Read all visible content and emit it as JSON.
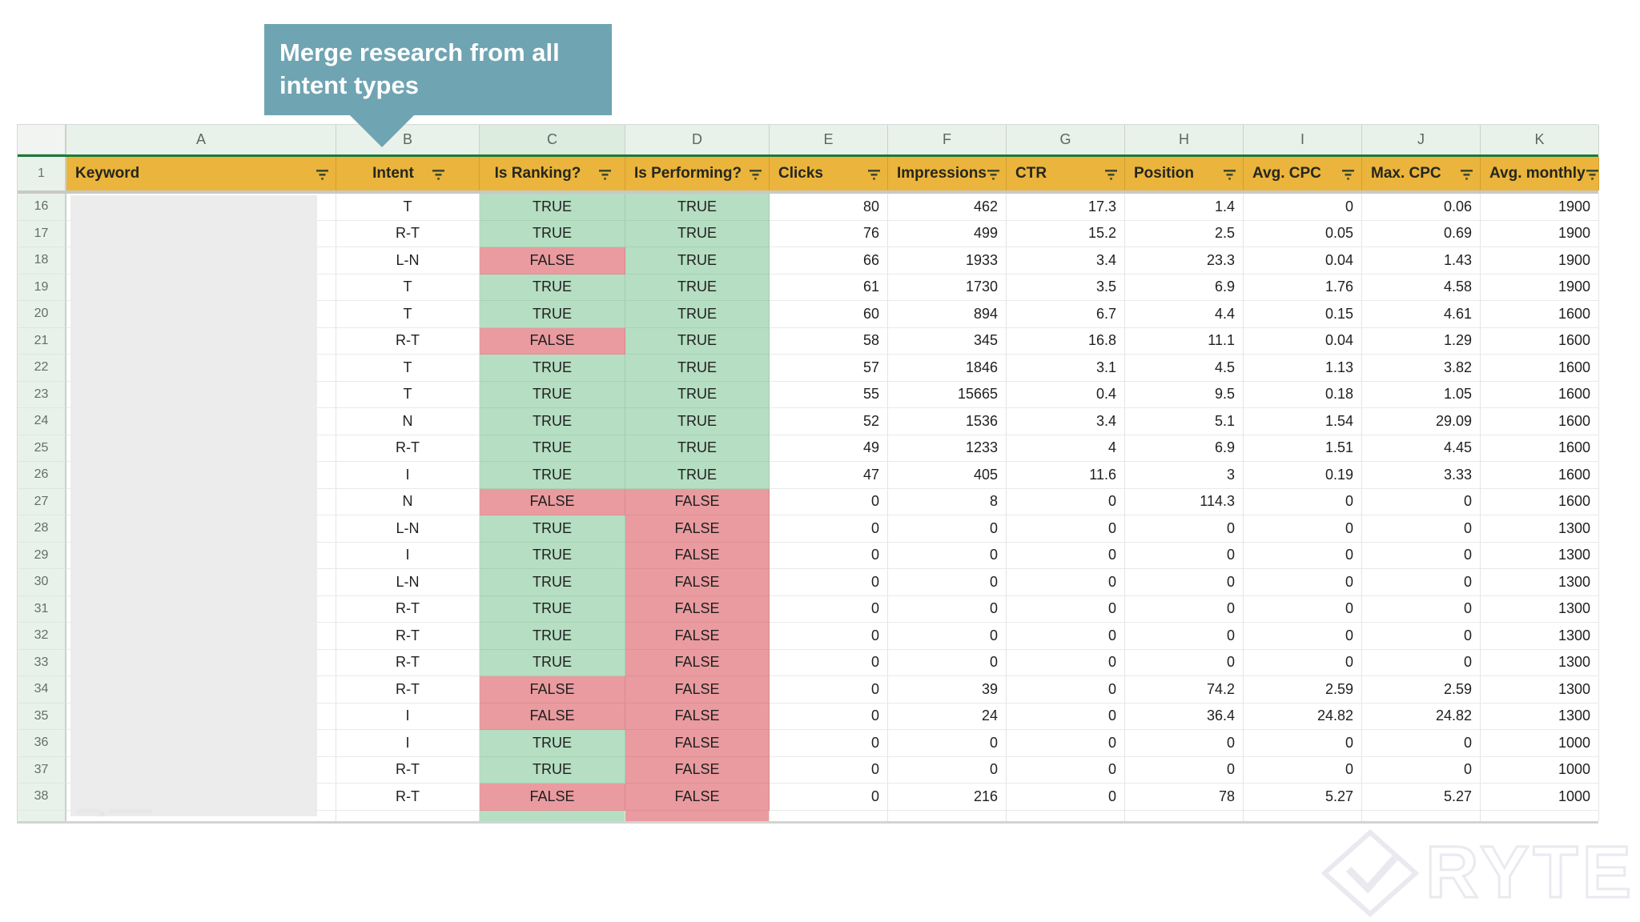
{
  "callout": {
    "text": "Merge research from all intent types"
  },
  "watermark": {
    "brand": "RYTE"
  },
  "sheet": {
    "column_letters": [
      "A",
      "B",
      "C",
      "D",
      "E",
      "F",
      "G",
      "H",
      "I",
      "J",
      "K"
    ],
    "highlighted_letter": "C",
    "first_row_number": "1",
    "headers": [
      "Keyword",
      "Intent",
      "Is Ranking?",
      "Is Performing?",
      "Clicks",
      "Impressions",
      "CTR",
      "Position",
      "Avg. CPC",
      "Max. CPC",
      "Avg. monthly"
    ],
    "rows": [
      {
        "n": "16",
        "intent": "T",
        "is_ranking": "TRUE",
        "is_performing": "TRUE",
        "clicks": "80",
        "impressions": "462",
        "ctr": "17.3",
        "position": "1.4",
        "avg_cpc": "0",
        "max_cpc": "0.06",
        "avg_monthly": "1900"
      },
      {
        "n": "17",
        "intent": "R-T",
        "is_ranking": "TRUE",
        "is_performing": "TRUE",
        "clicks": "76",
        "impressions": "499",
        "ctr": "15.2",
        "position": "2.5",
        "avg_cpc": "0.05",
        "max_cpc": "0.69",
        "avg_monthly": "1900"
      },
      {
        "n": "18",
        "intent": "L-N",
        "is_ranking": "FALSE",
        "is_performing": "TRUE",
        "clicks": "66",
        "impressions": "1933",
        "ctr": "3.4",
        "position": "23.3",
        "avg_cpc": "0.04",
        "max_cpc": "1.43",
        "avg_monthly": "1900"
      },
      {
        "n": "19",
        "intent": "T",
        "is_ranking": "TRUE",
        "is_performing": "TRUE",
        "clicks": "61",
        "impressions": "1730",
        "ctr": "3.5",
        "position": "6.9",
        "avg_cpc": "1.76",
        "max_cpc": "4.58",
        "avg_monthly": "1900"
      },
      {
        "n": "20",
        "intent": "T",
        "is_ranking": "TRUE",
        "is_performing": "TRUE",
        "clicks": "60",
        "impressions": "894",
        "ctr": "6.7",
        "position": "4.4",
        "avg_cpc": "0.15",
        "max_cpc": "4.61",
        "avg_monthly": "1600"
      },
      {
        "n": "21",
        "intent": "R-T",
        "is_ranking": "FALSE",
        "is_performing": "TRUE",
        "clicks": "58",
        "impressions": "345",
        "ctr": "16.8",
        "position": "11.1",
        "avg_cpc": "0.04",
        "max_cpc": "1.29",
        "avg_monthly": "1600"
      },
      {
        "n": "22",
        "intent": "T",
        "is_ranking": "TRUE",
        "is_performing": "TRUE",
        "clicks": "57",
        "impressions": "1846",
        "ctr": "3.1",
        "position": "4.5",
        "avg_cpc": "1.13",
        "max_cpc": "3.82",
        "avg_monthly": "1600"
      },
      {
        "n": "23",
        "intent": "T",
        "is_ranking": "TRUE",
        "is_performing": "TRUE",
        "clicks": "55",
        "impressions": "15665",
        "ctr": "0.4",
        "position": "9.5",
        "avg_cpc": "0.18",
        "max_cpc": "1.05",
        "avg_monthly": "1600"
      },
      {
        "n": "24",
        "intent": "N",
        "is_ranking": "TRUE",
        "is_performing": "TRUE",
        "clicks": "52",
        "impressions": "1536",
        "ctr": "3.4",
        "position": "5.1",
        "avg_cpc": "1.54",
        "max_cpc": "29.09",
        "avg_monthly": "1600"
      },
      {
        "n": "25",
        "intent": "R-T",
        "is_ranking": "TRUE",
        "is_performing": "TRUE",
        "clicks": "49",
        "impressions": "1233",
        "ctr": "4",
        "position": "6.9",
        "avg_cpc": "1.51",
        "max_cpc": "4.45",
        "avg_monthly": "1600"
      },
      {
        "n": "26",
        "intent": "I",
        "is_ranking": "TRUE",
        "is_performing": "TRUE",
        "clicks": "47",
        "impressions": "405",
        "ctr": "11.6",
        "position": "3",
        "avg_cpc": "0.19",
        "max_cpc": "3.33",
        "avg_monthly": "1600"
      },
      {
        "n": "27",
        "intent": "N",
        "is_ranking": "FALSE",
        "is_performing": "FALSE",
        "clicks": "0",
        "impressions": "8",
        "ctr": "0",
        "position": "114.3",
        "avg_cpc": "0",
        "max_cpc": "0",
        "avg_monthly": "1600"
      },
      {
        "n": "28",
        "intent": "L-N",
        "is_ranking": "TRUE",
        "is_performing": "FALSE",
        "clicks": "0",
        "impressions": "0",
        "ctr": "0",
        "position": "0",
        "avg_cpc": "0",
        "max_cpc": "0",
        "avg_monthly": "1300"
      },
      {
        "n": "29",
        "intent": "I",
        "is_ranking": "TRUE",
        "is_performing": "FALSE",
        "clicks": "0",
        "impressions": "0",
        "ctr": "0",
        "position": "0",
        "avg_cpc": "0",
        "max_cpc": "0",
        "avg_monthly": "1300"
      },
      {
        "n": "30",
        "intent": "L-N",
        "is_ranking": "TRUE",
        "is_performing": "FALSE",
        "clicks": "0",
        "impressions": "0",
        "ctr": "0",
        "position": "0",
        "avg_cpc": "0",
        "max_cpc": "0",
        "avg_monthly": "1300"
      },
      {
        "n": "31",
        "intent": "R-T",
        "is_ranking": "TRUE",
        "is_performing": "FALSE",
        "clicks": "0",
        "impressions": "0",
        "ctr": "0",
        "position": "0",
        "avg_cpc": "0",
        "max_cpc": "0",
        "avg_monthly": "1300"
      },
      {
        "n": "32",
        "intent": "R-T",
        "is_ranking": "TRUE",
        "is_performing": "FALSE",
        "clicks": "0",
        "impressions": "0",
        "ctr": "0",
        "position": "0",
        "avg_cpc": "0",
        "max_cpc": "0",
        "avg_monthly": "1300"
      },
      {
        "n": "33",
        "intent": "R-T",
        "is_ranking": "TRUE",
        "is_performing": "FALSE",
        "clicks": "0",
        "impressions": "0",
        "ctr": "0",
        "position": "0",
        "avg_cpc": "0",
        "max_cpc": "0",
        "avg_monthly": "1300"
      },
      {
        "n": "34",
        "intent": "R-T",
        "is_ranking": "FALSE",
        "is_performing": "FALSE",
        "clicks": "0",
        "impressions": "39",
        "ctr": "0",
        "position": "74.2",
        "avg_cpc": "2.59",
        "max_cpc": "2.59",
        "avg_monthly": "1300"
      },
      {
        "n": "35",
        "intent": "I",
        "is_ranking": "FALSE",
        "is_performing": "FALSE",
        "clicks": "0",
        "impressions": "24",
        "ctr": "0",
        "position": "36.4",
        "avg_cpc": "24.82",
        "max_cpc": "24.82",
        "avg_monthly": "1300"
      },
      {
        "n": "36",
        "intent": "I",
        "is_ranking": "TRUE",
        "is_performing": "FALSE",
        "clicks": "0",
        "impressions": "0",
        "ctr": "0",
        "position": "0",
        "avg_cpc": "0",
        "max_cpc": "0",
        "avg_monthly": "1000"
      },
      {
        "n": "37",
        "intent": "R-T",
        "is_ranking": "TRUE",
        "is_performing": "FALSE",
        "clicks": "0",
        "impressions": "0",
        "ctr": "0",
        "position": "0",
        "avg_cpc": "0",
        "max_cpc": "0",
        "avg_monthly": "1000"
      },
      {
        "n": "38",
        "intent": "R-T",
        "is_ranking": "FALSE",
        "is_performing": "FALSE",
        "clicks": "0",
        "impressions": "216",
        "ctr": "0",
        "position": "78",
        "avg_cpc": "5.27",
        "max_cpc": "5.27",
        "avg_monthly": "1000"
      }
    ]
  },
  "colors": {
    "header_yellow": "#EBB43C",
    "true_green": "#B5DEC2",
    "false_red": "#E99B9F",
    "callout_teal": "#6FA4B2",
    "header_border_green": "#1A7A3A",
    "letters_bg": "#E9F1EB",
    "letters_bg_highlight": "#DCECDF",
    "rownum_bg": "#E8F2EA"
  }
}
